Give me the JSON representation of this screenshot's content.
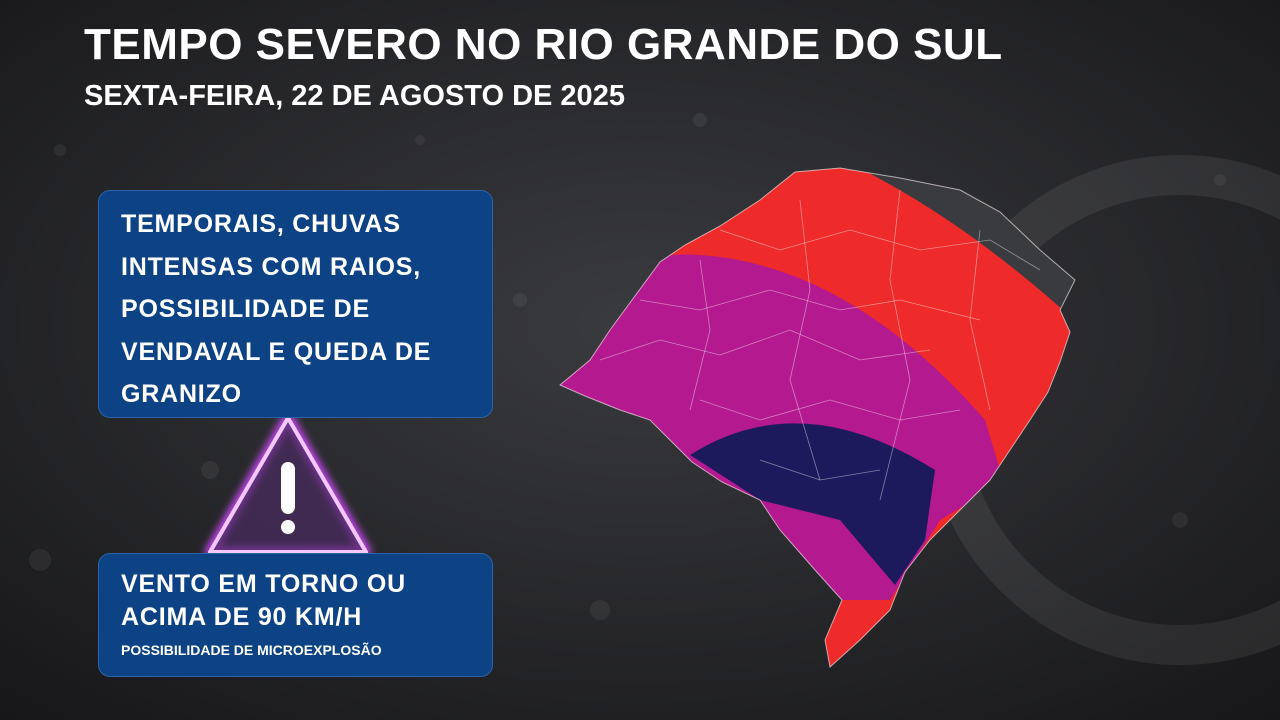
{
  "header": {
    "title": "TEMPO SEVERO NO RIO GRANDE DO SUL",
    "subtitle": "SEXTA-FEIRA, 22 DE AGOSTO DE 2025"
  },
  "boxes": [
    {
      "lines": [
        "TEMPORAIS, CHUVAS",
        "INTENSAS COM RAIOS,",
        "POSSIBILIDADE DE",
        "VENDAVAL E QUEDA DE",
        "GRANIZO"
      ]
    },
    {
      "lines": [
        "VENTO EM TORNO OU",
        "ACIMA DE 90 KM/H"
      ],
      "note": "POSSIBILIDADE DE MICROEXPLOSÃO"
    }
  ]
}
